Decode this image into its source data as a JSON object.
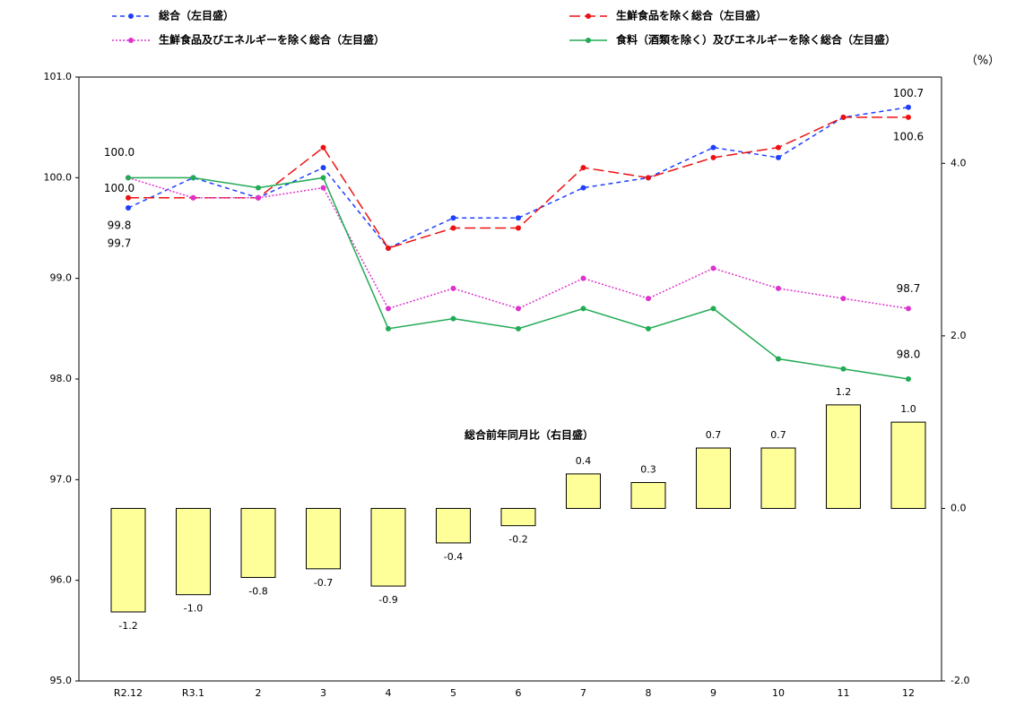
{
  "chart_data": {
    "type": "bar_line",
    "categories": [
      "R2.12",
      "R3.1",
      "2",
      "3",
      "4",
      "5",
      "6",
      "7",
      "8",
      "9",
      "10",
      "11",
      "12"
    ],
    "ylim": [
      95,
      101
    ],
    "yticks": [
      {
        "value": 95,
        "label": "95.0"
      },
      {
        "value": 96,
        "label": "96.0"
      },
      {
        "value": 97,
        "label": "97.0"
      },
      {
        "value": 98,
        "label": "98.0"
      },
      {
        "value": 99,
        "label": "99.0"
      },
      {
        "value": 100,
        "label": "100.0"
      },
      {
        "value": 101,
        "label": "101.0"
      }
    ],
    "y2lim": [
      -2,
      5
    ],
    "y2ticks": [
      {
        "value": -2,
        "label": "-2.0"
      },
      {
        "value": 0,
        "label": "0.0"
      },
      {
        "value": 2,
        "label": "2.0"
      },
      {
        "value": 4,
        "label": "4.0"
      }
    ],
    "y2_label": "（%）",
    "series": [
      {
        "name": "総合（左目盛）",
        "color": "#1f3fff",
        "style": "dashed",
        "type": "line",
        "values": [
          99.7,
          100.0,
          99.8,
          100.1,
          99.3,
          99.6,
          99.6,
          99.9,
          100.0,
          100.3,
          100.2,
          100.6,
          100.7
        ],
        "value_labels": [
          "99.7",
          null,
          null,
          null,
          null,
          null,
          null,
          null,
          null,
          null,
          null,
          null,
          "100.7"
        ]
      },
      {
        "name": "生鮮食品を除く総合（左目盛）",
        "color": "#ee1111",
        "style": "longdash",
        "type": "line",
        "values": [
          99.8,
          99.8,
          99.8,
          100.3,
          99.3,
          99.5,
          99.5,
          100.1,
          100.0,
          100.2,
          100.3,
          100.6,
          100.6
        ],
        "value_labels": [
          "99.8",
          null,
          null,
          null,
          null,
          null,
          null,
          null,
          null,
          null,
          null,
          null,
          "100.6"
        ]
      },
      {
        "name": "生鮮食品及びエネルギーを除く総合（左目盛）",
        "color": "#dd33cc",
        "style": "dotted",
        "type": "line",
        "values": [
          100.0,
          99.8,
          99.8,
          99.9,
          98.7,
          98.9,
          98.7,
          99.0,
          98.8,
          99.1,
          98.9,
          98.8,
          98.7
        ],
        "value_labels": [
          "100.0",
          null,
          null,
          null,
          null,
          null,
          null,
          null,
          null,
          null,
          null,
          null,
          "98.7"
        ]
      },
      {
        "name": "食料（酒類を除く）及びエネルギーを除く総合（左目盛）",
        "color": "#22aa55",
        "style": "solid",
        "type": "line",
        "values": [
          100.0,
          100.0,
          99.9,
          100.0,
          98.5,
          98.6,
          98.5,
          98.7,
          98.5,
          98.7,
          98.2,
          98.1,
          98.0
        ],
        "value_labels": [
          "100.0",
          null,
          null,
          null,
          null,
          null,
          null,
          null,
          null,
          null,
          null,
          null,
          "98.0"
        ]
      },
      {
        "name": "総合前年同月比（右目盛）",
        "color": "#ffff99",
        "type": "bar",
        "axis": "y2",
        "values": [
          -1.2,
          -1.0,
          -0.8,
          -0.7,
          -0.9,
          -0.4,
          -0.2,
          0.4,
          0.3,
          0.7,
          0.7,
          1.2,
          1.0
        ],
        "value_labels": [
          "-1.2",
          "-1.0",
          "-0.8",
          "-0.7",
          "-0.9",
          "-0.4",
          "-0.2",
          "0.4",
          "0.3",
          "0.7",
          "0.7",
          "1.2",
          "1.0"
        ]
      }
    ]
  }
}
